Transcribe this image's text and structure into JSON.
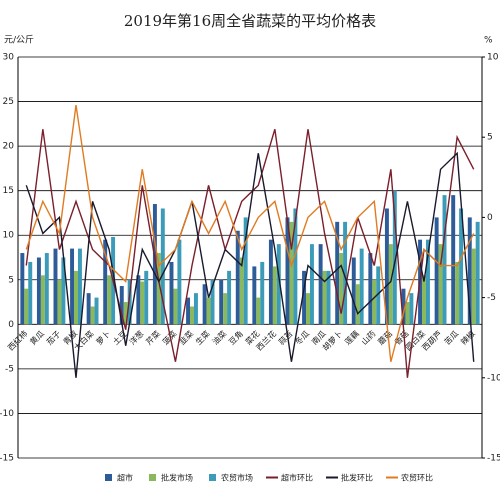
{
  "chart_data": {
    "type": "bar-line",
    "title": "2019年第16周全省蔬菜的平均价格表",
    "y_label": "元/公斤",
    "y2_label": "%",
    "categories": [
      "西红柿",
      "黄瓜",
      "茄子",
      "青椒",
      "大白菜",
      "萝卜",
      "土豆",
      "洋葱",
      "芹菜",
      "菠菜",
      "韭菜",
      "生菜",
      "油菜",
      "豆角",
      "菜花",
      "西兰花",
      "蒜苔",
      "冬瓜",
      "南瓜",
      "胡萝卜",
      "莲藕",
      "山药",
      "蘑菇",
      "香菇",
      "圆白菜",
      "西葫芦",
      "苦瓜",
      "辣椒"
    ],
    "series": [
      {
        "name": "超市",
        "color": "#2e5c99",
        "kind": "bar",
        "values": [
          8,
          7.5,
          8.5,
          8.5,
          3.5,
          9.5,
          4.3,
          5.5,
          13.5,
          7,
          3,
          4.5,
          5,
          10.5,
          6.5,
          9.5,
          12,
          6,
          9,
          11.5,
          7.5,
          8,
          13,
          4,
          9.5,
          12,
          14.5,
          12
        ]
      },
      {
        "name": "批发市场",
        "color": "#8bb85a",
        "kind": "bar",
        "values": [
          4,
          5.5,
          5,
          6,
          2,
          5.5,
          2.5,
          4.8,
          8,
          4,
          2,
          3,
          3.5,
          7.5,
          3,
          6.5,
          11.5,
          3.5,
          6,
          8,
          4.5,
          5,
          9,
          2.5,
          5.5,
          9,
          7,
          8.5
        ]
      },
      {
        "name": "农贸市场",
        "color": "#3b9bb8",
        "kind": "bar",
        "values": [
          7,
          8,
          7.5,
          8.5,
          3,
          9.8,
          5,
          6,
          13,
          9.5,
          3.5,
          5,
          6,
          12,
          7,
          9,
          13,
          9,
          6,
          11.5,
          8.5,
          6.5,
          15,
          3.5,
          9.5,
          14.5,
          13,
          11.5
        ]
      },
      {
        "name": "超市环比",
        "color": "#7a1f2b",
        "kind": "line",
        "axis": "y2",
        "values": [
          -3,
          5.5,
          -2,
          1,
          -2,
          -3,
          -7,
          2,
          -4,
          -9,
          -3,
          2,
          -2,
          1,
          2,
          5.5,
          -2,
          5.5,
          -1,
          -6,
          0,
          -3,
          3,
          -10,
          -2,
          -3,
          5,
          3
        ]
      },
      {
        "name": "批发环比",
        "color": "#1a1a2e",
        "kind": "line",
        "axis": "y2",
        "values": [
          2,
          -1,
          0,
          -10,
          1,
          -2,
          -8,
          -2,
          -4,
          -2,
          1,
          -5,
          -2,
          -3,
          4,
          -2,
          -9,
          -3,
          -4,
          -3,
          -6,
          -5,
          -4,
          1,
          -4,
          3,
          4,
          -9
        ]
      },
      {
        "name": "农贸环比",
        "color": "#e07b22",
        "kind": "line",
        "axis": "y2",
        "values": [
          -2,
          1,
          -1,
          7,
          0,
          -3,
          -4,
          3,
          -3,
          -2,
          1,
          -1,
          1,
          -2,
          0,
          1,
          -3,
          0,
          1,
          -2,
          0,
          1,
          -9,
          -5,
          -2,
          -3,
          -3,
          -1
        ]
      }
    ],
    "ylim": [
      -15,
      30
    ],
    "yticks": [
      -15,
      -10,
      -5,
      0,
      5,
      10,
      15,
      20,
      25,
      30
    ],
    "y2lim": [
      -15,
      10
    ],
    "y2ticks": [
      -15,
      -10,
      -5,
      0,
      5,
      10
    ],
    "grid": true
  }
}
